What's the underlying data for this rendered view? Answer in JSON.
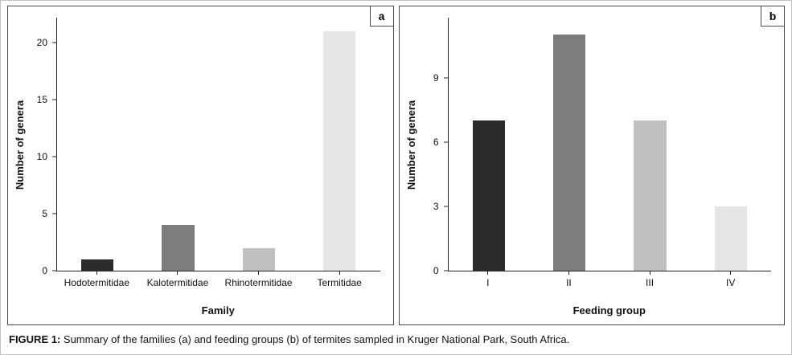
{
  "figure": {
    "caption_label": "FIGURE 1:",
    "caption_text": " Summary of the families (a) and feeding groups (b) of termites sampled in Kruger National Park, South Africa."
  },
  "chart_data": [
    {
      "type": "bar",
      "panel_label": "a",
      "title": "",
      "categories": [
        "Hodotermitidae",
        "Kalotermitidae",
        "Rhinotermitidae",
        "Termitidae"
      ],
      "values": [
        1,
        4,
        2,
        21
      ],
      "bar_colors": [
        "#2b2b2b",
        "#7d7d7d",
        "#c0c0c0",
        "#e6e6e6"
      ],
      "xlabel": "Family",
      "ylabel": "Number of genera",
      "yticks": [
        0,
        5,
        10,
        15,
        20
      ],
      "ylim": [
        0,
        22.2
      ],
      "grid": false,
      "legend": "none"
    },
    {
      "type": "bar",
      "panel_label": "b",
      "title": "",
      "categories": [
        "I",
        "II",
        "III",
        "IV"
      ],
      "values": [
        7,
        11,
        7,
        3
      ],
      "bar_colors": [
        "#2b2b2b",
        "#7d7d7d",
        "#c0c0c0",
        "#e6e6e6"
      ],
      "xlabel": "Feeding group",
      "ylabel": "Number of genera",
      "yticks": [
        0,
        3,
        6,
        9
      ],
      "ylim": [
        0,
        11.8
      ],
      "grid": false,
      "legend": "none"
    }
  ]
}
